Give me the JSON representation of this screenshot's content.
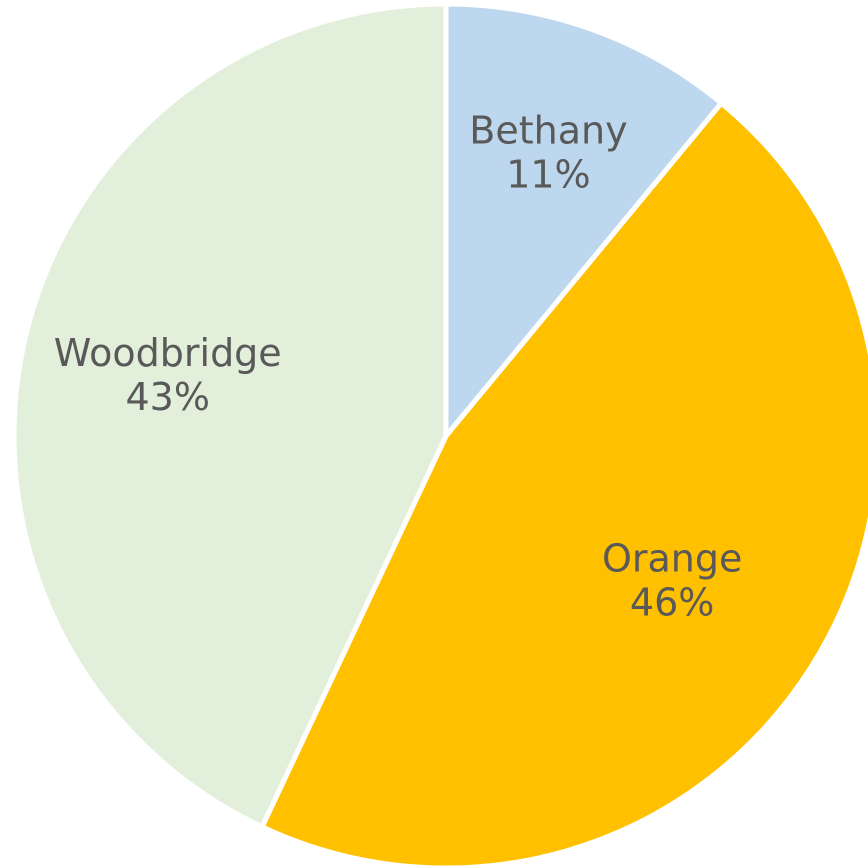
{
  "chart_data": {
    "type": "pie",
    "title": "",
    "start_angle_deg": 0,
    "direction": "clockwise",
    "legend": "none",
    "slices": [
      {
        "label": "Bethany",
        "value": 11,
        "display": "11%",
        "color": "#BDD7EE"
      },
      {
        "label": "Orange",
        "value": 46,
        "display": "46%",
        "color": "#FFC000"
      },
      {
        "label": "Woodbridge",
        "value": 43,
        "display": "43%",
        "color": "#E2EFDA"
      }
    ]
  }
}
